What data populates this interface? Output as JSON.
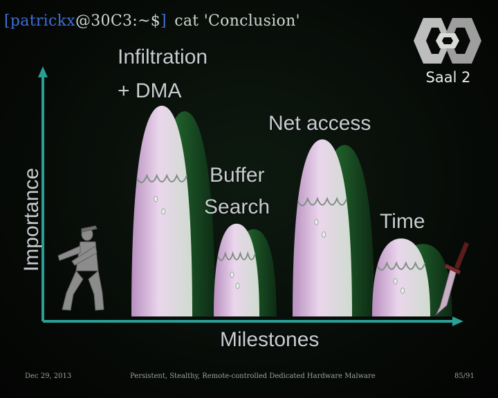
{
  "terminal": {
    "open_bracket": "[",
    "user": "patrickx",
    "host": "@30C3:~$",
    "close_bracket": "]",
    "command": "cat 'Conclusion'"
  },
  "branding": {
    "room": "Saal 2",
    "logo_icon": "30c3-logo-icon"
  },
  "chart_data": {
    "type": "area",
    "title": "",
    "xlabel": "Milestones",
    "ylabel": "Importance",
    "series": [
      {
        "name": "Infiltration + DMA",
        "values": [
          1.0
        ],
        "label_lines": [
          "Infiltration",
          "+ DMA"
        ]
      },
      {
        "name": "Buffer Search",
        "values": [
          0.44
        ],
        "label_lines": [
          "Buffer",
          "Search"
        ]
      },
      {
        "name": "Net access",
        "values": [
          0.84
        ],
        "label_lines": [
          "Net access"
        ]
      },
      {
        "name": "Time",
        "values": [
          0.37
        ],
        "label_lines": [
          "Time"
        ]
      }
    ],
    "colors": {
      "axis": "#2b9e95",
      "peak_fill": "#e8cde8",
      "shadow": "#1f6a2c"
    },
    "ninja_icon": "ninja-figure-icon",
    "dagger_icon": "dagger-icon"
  },
  "footer": {
    "date": "Dec 29, 2013",
    "title": "Persistent, Stealthy, Remote-controlled Dedicated Hardware Malware",
    "page": "85/91"
  }
}
